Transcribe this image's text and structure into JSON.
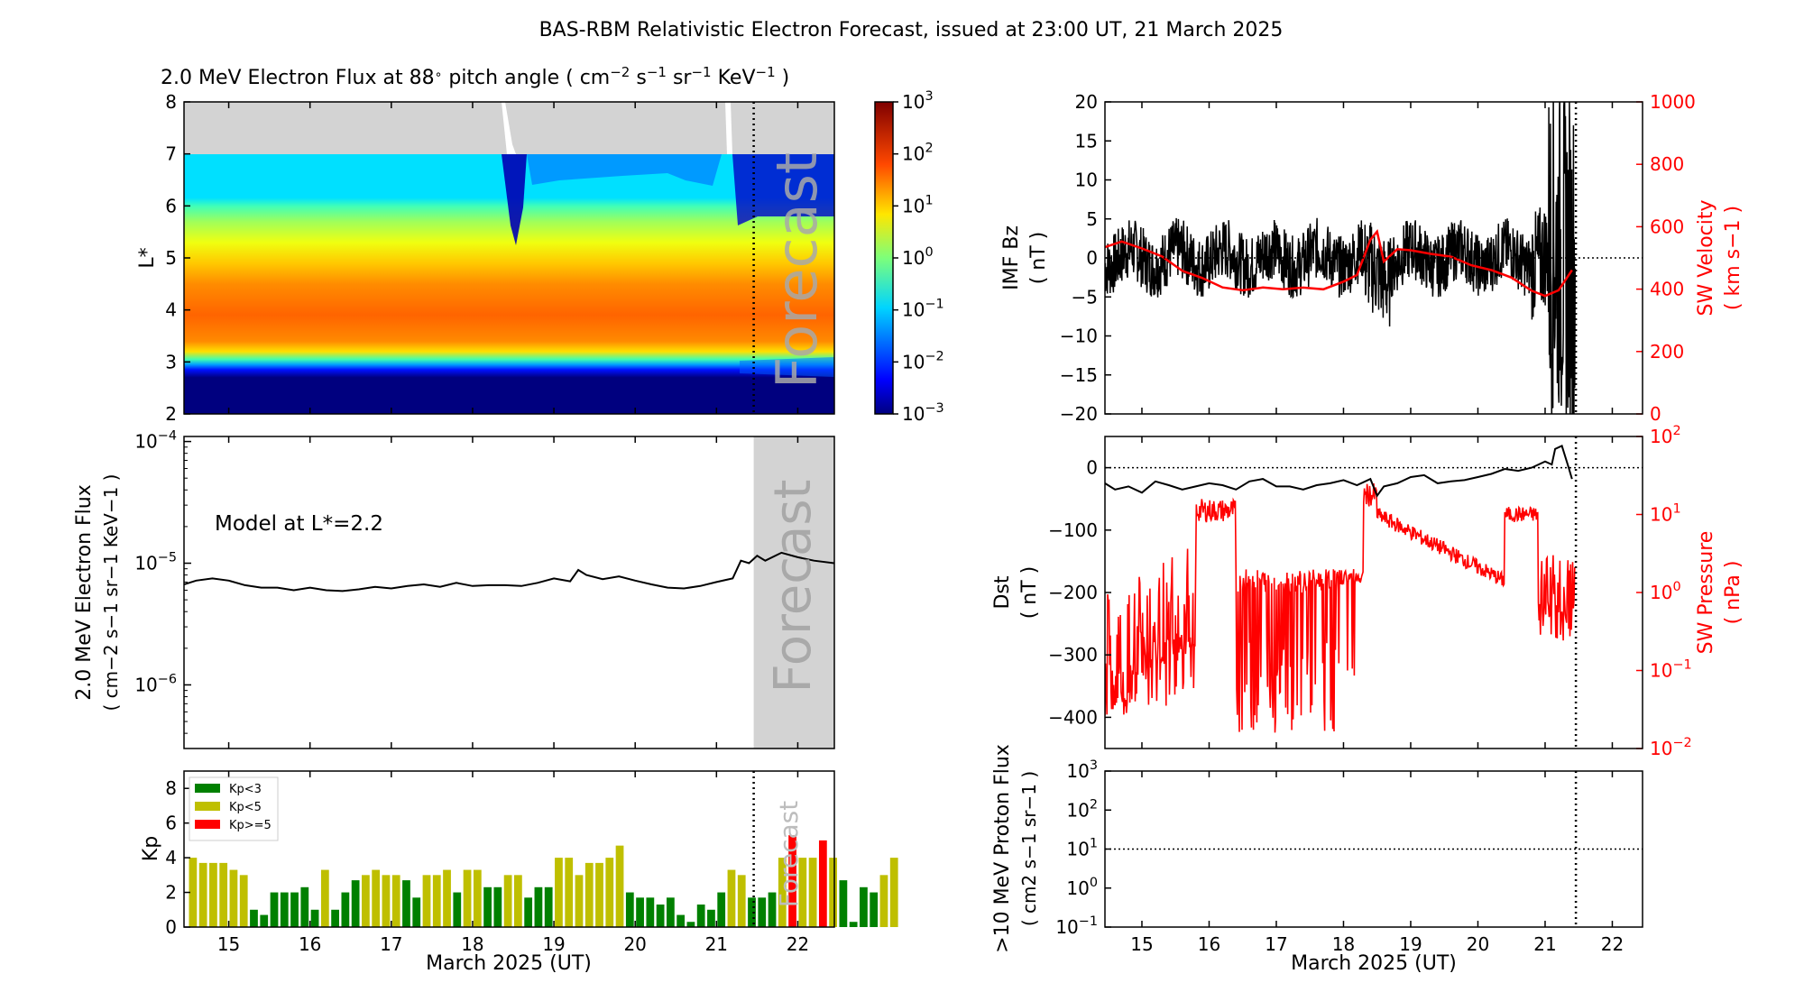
{
  "figure": {
    "title": "BAS-RBM Relativistic Electron Forecast, issued at 23:00 UT, 21 March 2025",
    "forecast_label": "Forecast",
    "forecast_start_day": 21.458,
    "x_range": [
      14.45,
      22.45
    ],
    "x_ticks": [
      15,
      16,
      17,
      18,
      19,
      20,
      21,
      22
    ],
    "x_label": "March 2025 (UT)",
    "colors": {
      "black": "#000000",
      "red": "#ff0000",
      "grey": "#d3d3d3",
      "forecast_text": "#a9a9a9"
    }
  },
  "chart_data": [
    {
      "id": "flux_map",
      "type": "heatmap",
      "title_prefix": "2.0 MeV Electron Flux at 88",
      "title_deg": "∘",
      "title_suffix": " pitch angle ( cm",
      "title_units": {
        "cm_exp": "−2",
        "s": " s",
        "s_exp": "−1",
        "sr": " sr",
        "sr_exp": "−1",
        "kev": " KeV",
        "kev_exp": "−1",
        "close": " )"
      },
      "ylabel": "L*",
      "ylim": [
        2,
        8
      ],
      "y_ticks": [
        2,
        3,
        4,
        5,
        6,
        7,
        8
      ],
      "grey_above_L": 7,
      "colorbar": {
        "scale": "log",
        "range": [
          0.001,
          1000
        ],
        "ticks": [
          {
            "base": "10",
            "exp": "3"
          },
          {
            "base": "10",
            "exp": "2"
          },
          {
            "base": "10",
            "exp": "1"
          },
          {
            "base": "10",
            "exp": "0"
          },
          {
            "base": "10",
            "exp": "−1"
          },
          {
            "base": "10",
            "exp": "−2"
          },
          {
            "base": "10",
            "exp": "−3"
          }
        ]
      }
    },
    {
      "id": "model_flux",
      "type": "line",
      "annotation": "Model at L*=2.2",
      "ylabel": "2.0 MeV Electron Flux",
      "ylabel2": "( cm−2 s−1 sr−1 KeV−1 )",
      "yscale": "log",
      "ylim": [
        3e-07,
        0.00011
      ],
      "y_ticks": [
        {
          "base": "10",
          "exp": "−4"
        },
        {
          "base": "10",
          "exp": "−5"
        },
        {
          "base": "10",
          "exp": "−6"
        }
      ],
      "x": [
        14.45,
        14.6,
        14.8,
        15.0,
        15.2,
        15.4,
        15.6,
        15.8,
        16.0,
        16.2,
        16.4,
        16.6,
        16.8,
        17.0,
        17.2,
        17.4,
        17.6,
        17.8,
        18.0,
        18.2,
        18.4,
        18.6,
        18.8,
        19.0,
        19.2,
        19.3,
        19.4,
        19.6,
        19.8,
        20.0,
        20.2,
        20.4,
        20.6,
        20.8,
        21.0,
        21.2,
        21.3,
        21.4,
        21.5,
        21.6,
        21.8,
        22.0,
        22.2,
        22.45
      ],
      "values": [
        6.7e-06,
        7.2e-06,
        7.5e-06,
        7.2e-06,
        6.6e-06,
        6.3e-06,
        6.3e-06,
        6e-06,
        6.3e-06,
        6e-06,
        5.9e-06,
        6.1e-06,
        6.4e-06,
        6.2e-06,
        6.5e-06,
        6.7e-06,
        6.4e-06,
        6.9e-06,
        6.5e-06,
        6.6e-06,
        6.6e-06,
        6.5e-06,
        6.9e-06,
        7.5e-06,
        7.1e-06,
        8.8e-06,
        8e-06,
        7.4e-06,
        7.8e-06,
        7.2e-06,
        6.7e-06,
        6.3e-06,
        6.2e-06,
        6.5e-06,
        7e-06,
        7.5e-06,
        1.05e-05,
        1e-05,
        1.15e-05,
        1.05e-05,
        1.22e-05,
        1.12e-05,
        1.05e-05,
        1e-05
      ]
    },
    {
      "id": "kp",
      "type": "bar",
      "ylabel": "Kp",
      "ylim": [
        0,
        9
      ],
      "y_ticks": [
        0,
        2,
        4,
        6,
        8
      ],
      "legend": [
        {
          "label": "Kp<3",
          "color": "#008000"
        },
        {
          "label": "Kp<5",
          "color": "#bfbf00"
        },
        {
          "label": "Kp>=5",
          "color": "#ff0000"
        }
      ],
      "bar_start_day": 14.5,
      "bar_width_days": 0.125,
      "values": [
        4.0,
        3.7,
        3.7,
        3.7,
        3.3,
        3.0,
        1.0,
        0.7,
        2.0,
        2.0,
        2.0,
        2.3,
        1.0,
        3.3,
        1.0,
        2.0,
        2.7,
        3.0,
        3.3,
        3.0,
        3.0,
        2.7,
        1.7,
        3.0,
        3.0,
        3.3,
        2.0,
        3.3,
        3.3,
        2.3,
        2.3,
        3.0,
        3.0,
        1.7,
        2.3,
        2.3,
        4.0,
        4.0,
        3.0,
        3.7,
        3.7,
        4.0,
        4.7,
        2.0,
        1.7,
        1.7,
        1.3,
        1.7,
        0.7,
        0.3,
        1.3,
        1.0,
        2.0,
        3.3,
        3.0,
        1.7,
        1.7,
        2.0,
        4.0,
        5.3,
        4.0,
        4.0,
        5.0,
        4.0,
        2.7,
        0.3,
        2.3,
        2.0,
        3.0,
        4.0
      ]
    },
    {
      "id": "imf_bz",
      "type": "line",
      "ylabel": "IMF Bz",
      "ylabel2": "( nT )",
      "ylim": [
        -20,
        20
      ],
      "y_ticks": [
        20,
        15,
        10,
        5,
        0,
        -5,
        -10,
        -15,
        -20
      ],
      "y_tick_labels": [
        "20",
        "15",
        "10",
        "5",
        "0",
        "−5",
        "−10",
        "−15",
        "−20"
      ],
      "right_label": "SW Velocity",
      "right_label2": "( km s−1 )",
      "right_ylim": [
        0,
        1000
      ],
      "right_ticks": [
        "1000",
        "800",
        "600",
        "400",
        "200",
        "0"
      ],
      "sw_velocity": {
        "x": [
          14.45,
          14.7,
          15.0,
          15.3,
          15.6,
          15.9,
          16.2,
          16.5,
          16.8,
          17.1,
          17.4,
          17.7,
          18.0,
          18.2,
          18.4,
          18.5,
          18.6,
          18.8,
          19.0,
          19.3,
          19.6,
          19.9,
          20.2,
          20.5,
          20.8,
          21.0,
          21.2,
          21.4
        ],
        "values": [
          540,
          560,
          520,
          500,
          460,
          430,
          410,
          400,
          410,
          400,
          410,
          410,
          420,
          440,
          560,
          590,
          500,
          520,
          520,
          510,
          500,
          480,
          450,
          440,
          390,
          380,
          400,
          470
        ]
      }
    },
    {
      "id": "dst",
      "type": "line",
      "ylabel": "Dst",
      "ylabel2": "( nT )",
      "ylim": [
        -450,
        50
      ],
      "y_ticks": [
        "0",
        "−100",
        "−200",
        "−300",
        "−400"
      ],
      "right_label": "SW Pressure",
      "right_label2": "( nPa )",
      "right_ticks": [
        {
          "base": "10",
          "exp": "2"
        },
        {
          "base": "10",
          "exp": "1"
        },
        {
          "base": "10",
          "exp": "0"
        },
        {
          "base": "10",
          "exp": "−1"
        },
        {
          "base": "10",
          "exp": "−2"
        }
      ],
      "x": [
        14.45,
        14.6,
        14.8,
        15.0,
        15.2,
        15.4,
        15.6,
        15.8,
        16.0,
        16.2,
        16.4,
        16.6,
        16.8,
        17.0,
        17.2,
        17.4,
        17.6,
        17.8,
        18.0,
        18.2,
        18.4,
        18.5,
        18.6,
        18.8,
        19.0,
        19.2,
        19.4,
        19.6,
        19.8,
        20.0,
        20.2,
        20.4,
        20.6,
        20.8,
        21.0,
        21.1,
        21.15,
        21.25,
        21.35,
        21.4
      ],
      "values": [
        -25,
        -35,
        -30,
        -40,
        -22,
        -28,
        -35,
        -30,
        -25,
        -28,
        -35,
        -22,
        -18,
        -30,
        -30,
        -35,
        -28,
        -25,
        -20,
        -28,
        -18,
        -45,
        -30,
        -25,
        -15,
        -12,
        -25,
        -22,
        -20,
        -15,
        -10,
        -2,
        -5,
        0,
        10,
        5,
        30,
        35,
        0,
        -18
      ]
    },
    {
      "id": "proton_flux",
      "type": "line",
      "ylabel": ">10 MeV Proton Flux",
      "ylabel2": "( cm2 s−1 sr−1 )",
      "yscale": "log",
      "ylim": [
        0.1,
        1000
      ],
      "y_ticks": [
        {
          "base": "10",
          "exp": "3"
        },
        {
          "base": "10",
          "exp": "2"
        },
        {
          "base": "10",
          "exp": "1"
        },
        {
          "base": "10",
          "exp": "0"
        },
        {
          "base": "10",
          "exp": "−1"
        }
      ],
      "threshold": 10
    }
  ]
}
